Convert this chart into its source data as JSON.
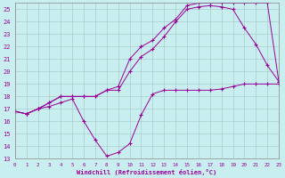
{
  "bg_color": "#c8eef0",
  "grid_color": "#aacccc",
  "line_color": "#990099",
  "xlabel": "Windchill (Refroidissement éolien,°C)",
  "xlim": [
    0,
    23
  ],
  "ylim": [
    13,
    25.5
  ],
  "yticks": [
    13,
    14,
    15,
    16,
    17,
    18,
    19,
    20,
    21,
    22,
    23,
    24,
    25
  ],
  "xticks": [
    0,
    1,
    2,
    3,
    4,
    5,
    6,
    7,
    8,
    9,
    10,
    11,
    12,
    13,
    14,
    15,
    16,
    17,
    18,
    19,
    20,
    21,
    22,
    23
  ],
  "line1_x": [
    0,
    1,
    2,
    3,
    4,
    5,
    6,
    7,
    8,
    9,
    10,
    11,
    12,
    13,
    14,
    15,
    16,
    17,
    18,
    19,
    20,
    21,
    22,
    23
  ],
  "line1_y": [
    16.8,
    16.6,
    17.0,
    17.2,
    17.5,
    17.8,
    16.0,
    14.5,
    13.2,
    13.5,
    14.2,
    16.5,
    18.2,
    18.5,
    18.5,
    18.5,
    18.5,
    18.5,
    18.6,
    18.8,
    19.0,
    19.0,
    19.0,
    19.0
  ],
  "line2_x": [
    0,
    1,
    2,
    3,
    4,
    5,
    6,
    7,
    8,
    9,
    10,
    11,
    12,
    13,
    14,
    15,
    16,
    17,
    18,
    19,
    20,
    21,
    22,
    23
  ],
  "line2_y": [
    16.8,
    16.6,
    17.0,
    17.5,
    18.0,
    18.0,
    18.0,
    18.0,
    18.5,
    18.5,
    20.0,
    21.2,
    21.8,
    22.8,
    24.0,
    25.0,
    25.2,
    25.3,
    25.2,
    25.0,
    23.5,
    22.2,
    20.5,
    19.2
  ],
  "line3_x": [
    0,
    1,
    2,
    3,
    4,
    5,
    6,
    7,
    8,
    9,
    10,
    11,
    12,
    13,
    14,
    15,
    16,
    17,
    18,
    19,
    20,
    21,
    22,
    23
  ],
  "line3_y": [
    16.8,
    16.6,
    17.0,
    17.5,
    18.0,
    18.0,
    18.0,
    18.0,
    18.5,
    18.8,
    21.0,
    22.0,
    22.5,
    23.5,
    24.2,
    25.3,
    25.5,
    25.5,
    25.5,
    25.5,
    25.5,
    25.5,
    25.5,
    19.2
  ]
}
